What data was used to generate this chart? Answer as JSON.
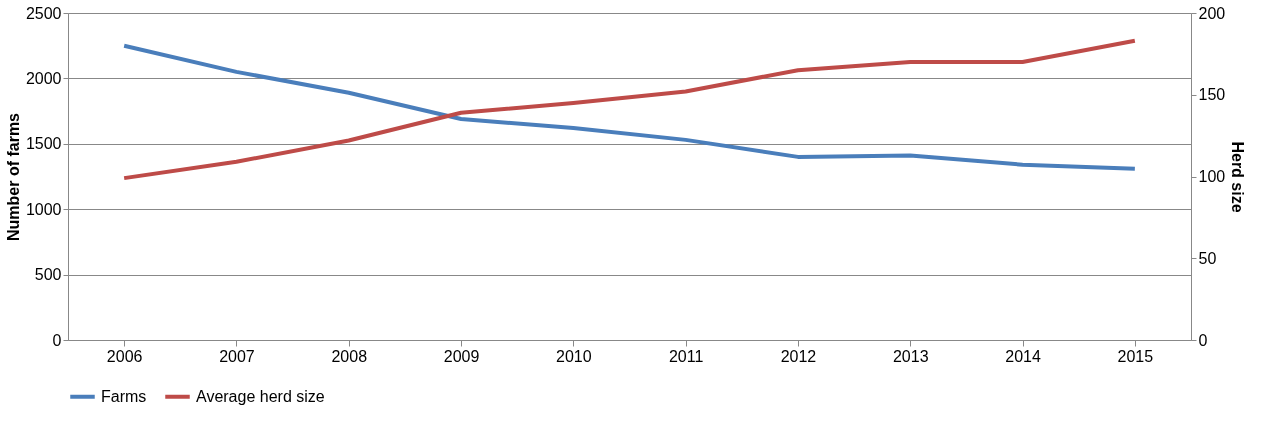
{
  "chart_data": {
    "type": "line",
    "categories": [
      "2006",
      "2007",
      "2008",
      "2009",
      "2010",
      "2011",
      "2012",
      "2013",
      "2014",
      "2015"
    ],
    "series": [
      {
        "name": "Farms",
        "color": "#4a7ebb",
        "values": [
          2250,
          2050,
          1890,
          1690,
          1620,
          1530,
          1400,
          1410,
          1340,
          1310
        ]
      },
      {
        "name": "Average herd size",
        "color": "#be4b48",
        "axis": "y2",
        "values": [
          99,
          109,
          122,
          139,
          145,
          152,
          165,
          170,
          170,
          183
        ]
      }
    ],
    "ylabel": "Number of farms",
    "y2label": "Herd size",
    "ylim": [
      0,
      2500
    ],
    "yticks": [
      0,
      500,
      1000,
      1500,
      2000,
      2500
    ],
    "y2lim": [
      0,
      200
    ],
    "y2ticks": [
      0,
      50,
      100,
      150,
      200
    ],
    "grid": "y",
    "legend": "bottom",
    "marker": "none",
    "line_style": "solid"
  }
}
